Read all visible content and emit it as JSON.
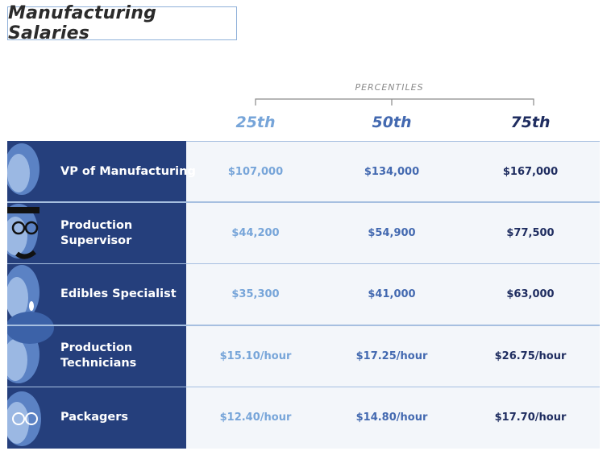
{
  "title": "Manufacturing Salaries",
  "percentiles_label": "PERCENTILES",
  "columns": [
    "25th",
    "50th",
    "75th"
  ],
  "rows": [
    {
      "role": "VP of Manufacturing",
      "values": [
        "$107,000",
        "$134,000",
        "$167,000"
      ]
    },
    {
      "role": "Production\nSupervisor",
      "values": [
        "$44,200",
        "$54,900",
        "$77,500"
      ]
    },
    {
      "role": "Edibles Specialist",
      "values": [
        "$35,300",
        "$41,000",
        "$63,000"
      ]
    },
    {
      "role": "Production\nTechnicians",
      "values": [
        "$15.10/hour",
        "$17.25/hour",
        "$26.75/hour"
      ]
    },
    {
      "role": "Packagers",
      "values": [
        "$12.40/hour",
        "$14.80/hour",
        "$17.70/hour"
      ]
    }
  ]
}
